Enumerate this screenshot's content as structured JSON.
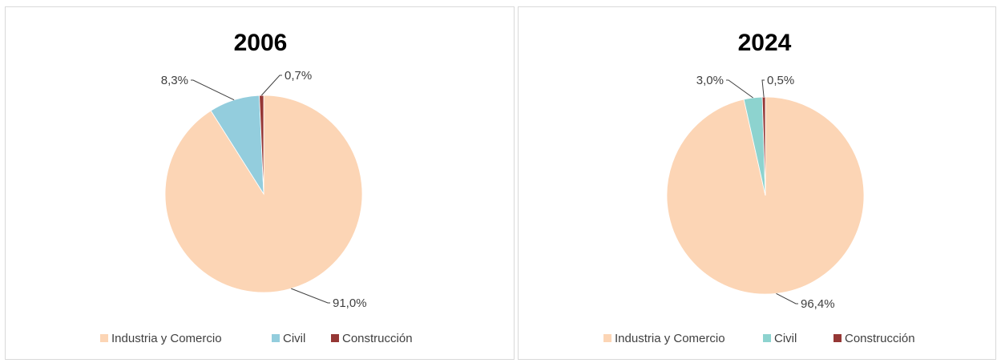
{
  "colors": {
    "Industria y Comercio": "#fcd5b5",
    "Civil": "#93cddd",
    "Construcción": "#953735",
    "civil_2024": "#8dd3cf"
  },
  "chart_data": [
    {
      "type": "pie",
      "title": "2006",
      "legend": "bottom",
      "series": [
        {
          "name": "Industria y Comercio",
          "value": 91.0,
          "label": "91,0%"
        },
        {
          "name": "Civil",
          "value": 8.3,
          "label": "8,3%"
        },
        {
          "name": "Construcción",
          "value": 0.7,
          "label": "0,7%"
        }
      ]
    },
    {
      "type": "pie",
      "title": "2024",
      "legend": "bottom",
      "series": [
        {
          "name": "Industria y Comercio",
          "value": 96.4,
          "label": "96,4%"
        },
        {
          "name": "Civil",
          "value": 3.0,
          "label": "3,0%"
        },
        {
          "name": "Construcción",
          "value": 0.5,
          "label": "0,5%"
        }
      ]
    }
  ]
}
